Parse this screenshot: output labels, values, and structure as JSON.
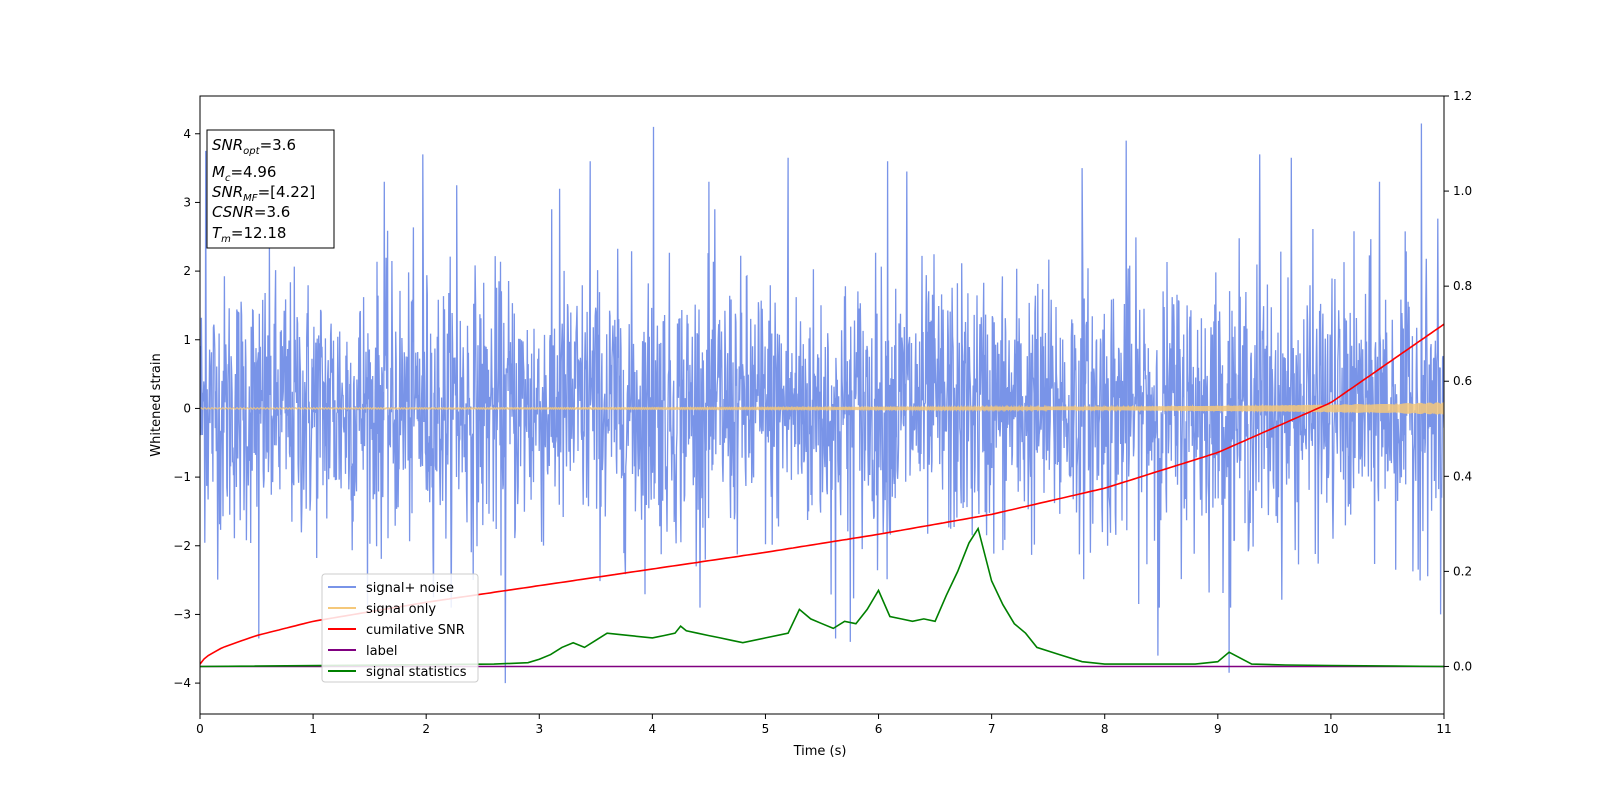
{
  "chart_data": {
    "type": "line",
    "xlabel": "Time (s)",
    "ylabel": "Whitened strain",
    "xlim": [
      0,
      11
    ],
    "ylim": [
      -4.45,
      4.55
    ],
    "y2lim": [
      -0.1,
      1.2
    ],
    "grid": false,
    "xticks": [
      "0",
      "1",
      "2",
      "3",
      "4",
      "5",
      "6",
      "7",
      "8",
      "9",
      "10",
      "11"
    ],
    "yticks": [
      "4",
      "3",
      "2",
      "1",
      "0",
      "−1",
      "−2",
      "−3",
      "−4"
    ],
    "y2ticks": [
      "1.2",
      "1.0",
      "0.8",
      "0.6",
      "0.4",
      "0.2",
      "0.0"
    ],
    "annotation": {
      "lines": [
        {
          "base": "SNR",
          "sub": "opt",
          "rest": "=3.6"
        },
        {
          "base": "M",
          "sub": "c",
          "rest": "=4.96"
        },
        {
          "base": "SNR",
          "sub": "MF",
          "rest": "=[4.22]"
        },
        {
          "base": "CSNR",
          "sub": "",
          "rest": "=3.6"
        },
        {
          "base": "T",
          "sub": "m",
          "rest": "=12.18"
        }
      ]
    },
    "legend": {
      "placement": "lower-left",
      "entries": [
        {
          "label": "signal+ noise",
          "color": "#7994e8"
        },
        {
          "label": "signal only",
          "color": "#f5c87a"
        },
        {
          "label": "cumilative SNR",
          "color": "#ff0000"
        },
        {
          "label": "label",
          "color": "#800080"
        },
        {
          "label": "signal statistics",
          "color": "#008000"
        }
      ]
    },
    "series": [
      {
        "name": "signal+ noise",
        "axis": "left",
        "color": "#7994e8",
        "kind": "noise",
        "typical_range": [
          -2.0,
          2.0
        ],
        "spikes": [
          {
            "x": 0.05,
            "y": 3.75
          },
          {
            "x": 0.52,
            "y": -3.35
          },
          {
            "x": 1.63,
            "y": 3.3
          },
          {
            "x": 1.97,
            "y": 3.7
          },
          {
            "x": 2.27,
            "y": 3.25
          },
          {
            "x": 2.7,
            "y": -4.0
          },
          {
            "x": 3.18,
            "y": 3.2
          },
          {
            "x": 3.45,
            "y": 3.6
          },
          {
            "x": 4.01,
            "y": 4.1
          },
          {
            "x": 4.5,
            "y": 3.3
          },
          {
            "x": 5.2,
            "y": 3.65
          },
          {
            "x": 5.62,
            "y": -3.35
          },
          {
            "x": 5.75,
            "y": -3.4
          },
          {
            "x": 6.08,
            "y": 3.6
          },
          {
            "x": 6.25,
            "y": 3.45
          },
          {
            "x": 7.8,
            "y": 3.5
          },
          {
            "x": 8.19,
            "y": 3.9
          },
          {
            "x": 8.47,
            "y": -3.6
          },
          {
            "x": 9.1,
            "y": -3.85
          },
          {
            "x": 9.37,
            "y": 3.7
          },
          {
            "x": 9.65,
            "y": 3.65
          },
          {
            "x": 10.43,
            "y": 3.3
          },
          {
            "x": 10.8,
            "y": 4.15
          },
          {
            "x": 10.97,
            "y": -3.0
          }
        ]
      },
      {
        "name": "signal only",
        "axis": "left",
        "color": "#f5c87a",
        "kind": "chirp",
        "amplitude": {
          "x": [
            0,
            3,
            6,
            8,
            9.5,
            10.5,
            11
          ],
          "y": [
            0.01,
            0.012,
            0.018,
            0.025,
            0.045,
            0.07,
            0.09
          ]
        }
      },
      {
        "name": "cumilative SNR",
        "axis": "right",
        "color": "#ff0000",
        "x": [
          0,
          0.05,
          0.2,
          0.5,
          1.0,
          1.5,
          2.0,
          3.0,
          4.0,
          5.0,
          6.0,
          7.0,
          8.0,
          9.0,
          10.0,
          11.0
        ],
        "y": [
          0.005,
          0.02,
          0.04,
          0.065,
          0.095,
          0.115,
          0.135,
          0.17,
          0.205,
          0.24,
          0.278,
          0.32,
          0.375,
          0.45,
          0.555,
          0.72
        ]
      },
      {
        "name": "label",
        "axis": "right",
        "color": "#800080",
        "x": [
          0,
          11
        ],
        "y": [
          0.0,
          0.0
        ]
      },
      {
        "name": "signal statistics",
        "axis": "right",
        "color": "#008000",
        "x": [
          0,
          2.6,
          2.9,
          3.0,
          3.1,
          3.2,
          3.3,
          3.4,
          3.5,
          3.6,
          3.8,
          4.0,
          4.1,
          4.2,
          4.25,
          4.3,
          4.4,
          4.5,
          4.6,
          4.7,
          4.8,
          5.0,
          5.2,
          5.3,
          5.4,
          5.5,
          5.6,
          5.7,
          5.8,
          5.9,
          6.0,
          6.1,
          6.2,
          6.3,
          6.4,
          6.5,
          6.6,
          6.7,
          6.8,
          6.88,
          7.0,
          7.1,
          7.2,
          7.3,
          7.4,
          7.6,
          7.8,
          8.0,
          8.5,
          8.8,
          9.0,
          9.1,
          9.3,
          9.6,
          10.0,
          11.0
        ],
        "y": [
          0.0,
          0.005,
          0.008,
          0.015,
          0.025,
          0.04,
          0.05,
          0.04,
          0.055,
          0.07,
          0.065,
          0.06,
          0.065,
          0.07,
          0.085,
          0.075,
          0.07,
          0.065,
          0.06,
          0.055,
          0.05,
          0.06,
          0.07,
          0.12,
          0.1,
          0.09,
          0.08,
          0.095,
          0.09,
          0.12,
          0.16,
          0.105,
          0.1,
          0.095,
          0.1,
          0.095,
          0.15,
          0.2,
          0.26,
          0.29,
          0.18,
          0.13,
          0.09,
          0.07,
          0.04,
          0.025,
          0.01,
          0.005,
          0.005,
          0.005,
          0.01,
          0.03,
          0.005,
          0.003,
          0.002,
          0.0
        ]
      }
    ]
  }
}
